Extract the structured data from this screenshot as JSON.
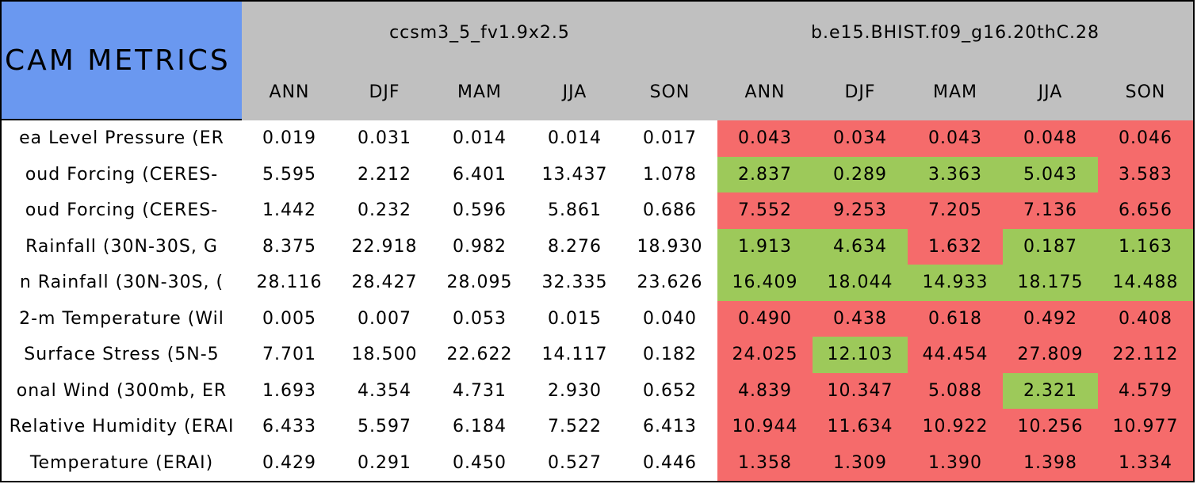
{
  "header": {
    "title": "CAM METRICS",
    "groups": [
      {
        "name": "ccsm3_5_fv1.9x2.5",
        "seasons": [
          "ANN",
          "DJF",
          "MAM",
          "JJA",
          "SON"
        ]
      },
      {
        "name": "b.e15.BHIST.f09_g16.20thC.28",
        "seasons": [
          "ANN",
          "DJF",
          "MAM",
          "JJA",
          "SON"
        ]
      }
    ]
  },
  "table": {
    "rows": [
      {
        "label": "ea Level Pressure (ER",
        "values": [
          "0.019",
          "0.031",
          "0.014",
          "0.014",
          "0.017",
          "0.043",
          "0.034",
          "0.043",
          "0.048",
          "0.046"
        ],
        "colors": [
          "#ffffff",
          "#ffffff",
          "#ffffff",
          "#ffffff",
          "#ffffff",
          "#f56b6b",
          "#f56b6b",
          "#f56b6b",
          "#f56b6b",
          "#f56b6b"
        ]
      },
      {
        "label": "oud Forcing (CERES-",
        "values": [
          "5.595",
          "2.212",
          "6.401",
          "13.437",
          "1.078",
          "2.837",
          "0.289",
          "3.363",
          "5.043",
          "3.583"
        ],
        "colors": [
          "#ffffff",
          "#ffffff",
          "#ffffff",
          "#ffffff",
          "#ffffff",
          "#9dc95a",
          "#9dc95a",
          "#9dc95a",
          "#9dc95a",
          "#f56b6b"
        ]
      },
      {
        "label": "oud Forcing (CERES-",
        "values": [
          "1.442",
          "0.232",
          "0.596",
          "5.861",
          "0.686",
          "7.552",
          "9.253",
          "7.205",
          "7.136",
          "6.656"
        ],
        "colors": [
          "#ffffff",
          "#ffffff",
          "#ffffff",
          "#ffffff",
          "#ffffff",
          "#f56b6b",
          "#f56b6b",
          "#f56b6b",
          "#f56b6b",
          "#f56b6b"
        ]
      },
      {
        "label": "Rainfall (30N-30S, G",
        "values": [
          "8.375",
          "22.918",
          "0.982",
          "8.276",
          "18.930",
          "1.913",
          "4.634",
          "1.632",
          "0.187",
          "1.163"
        ],
        "colors": [
          "#ffffff",
          "#ffffff",
          "#ffffff",
          "#ffffff",
          "#ffffff",
          "#9dc95a",
          "#9dc95a",
          "#f56b6b",
          "#9dc95a",
          "#9dc95a"
        ]
      },
      {
        "label": "n Rainfall (30N-30S, (",
        "values": [
          "28.116",
          "28.427",
          "28.095",
          "32.335",
          "23.626",
          "16.409",
          "18.044",
          "14.933",
          "18.175",
          "14.488"
        ],
        "colors": [
          "#ffffff",
          "#ffffff",
          "#ffffff",
          "#ffffff",
          "#ffffff",
          "#9dc95a",
          "#9dc95a",
          "#9dc95a",
          "#9dc95a",
          "#9dc95a"
        ]
      },
      {
        "label": "2-m Temperature (Wil",
        "values": [
          "0.005",
          "0.007",
          "0.053",
          "0.015",
          "0.040",
          "0.490",
          "0.438",
          "0.618",
          "0.492",
          "0.408"
        ],
        "colors": [
          "#ffffff",
          "#ffffff",
          "#ffffff",
          "#ffffff",
          "#ffffff",
          "#f56b6b",
          "#f56b6b",
          "#f56b6b",
          "#f56b6b",
          "#f56b6b"
        ]
      },
      {
        "label": "Surface Stress (5N-5",
        "values": [
          "7.701",
          "18.500",
          "22.622",
          "14.117",
          "0.182",
          "24.025",
          "12.103",
          "44.454",
          "27.809",
          "22.112"
        ],
        "colors": [
          "#ffffff",
          "#ffffff",
          "#ffffff",
          "#ffffff",
          "#ffffff",
          "#f56b6b",
          "#9dc95a",
          "#f56b6b",
          "#f56b6b",
          "#f56b6b"
        ]
      },
      {
        "label": "onal Wind (300mb, ER",
        "values": [
          "1.693",
          "4.354",
          "4.731",
          "2.930",
          "0.652",
          "4.839",
          "10.347",
          "5.088",
          "2.321",
          "4.579"
        ],
        "colors": [
          "#ffffff",
          "#ffffff",
          "#ffffff",
          "#ffffff",
          "#ffffff",
          "#f56b6b",
          "#f56b6b",
          "#f56b6b",
          "#9dc95a",
          "#f56b6b"
        ]
      },
      {
        "label": "Relative Humidity (ERAI",
        "values": [
          "6.433",
          "5.597",
          "6.184",
          "7.522",
          "6.413",
          "10.944",
          "11.634",
          "10.922",
          "10.256",
          "10.977"
        ],
        "colors": [
          "#ffffff",
          "#ffffff",
          "#ffffff",
          "#ffffff",
          "#ffffff",
          "#f56b6b",
          "#f56b6b",
          "#f56b6b",
          "#f56b6b",
          "#f56b6b"
        ]
      },
      {
        "label": "Temperature (ERAI)",
        "values": [
          "0.429",
          "0.291",
          "0.450",
          "0.527",
          "0.446",
          "1.358",
          "1.309",
          "1.390",
          "1.398",
          "1.334"
        ],
        "colors": [
          "#ffffff",
          "#ffffff",
          "#ffffff",
          "#ffffff",
          "#ffffff",
          "#f56b6b",
          "#f56b6b",
          "#f56b6b",
          "#f56b6b",
          "#f56b6b"
        ]
      }
    ]
  }
}
